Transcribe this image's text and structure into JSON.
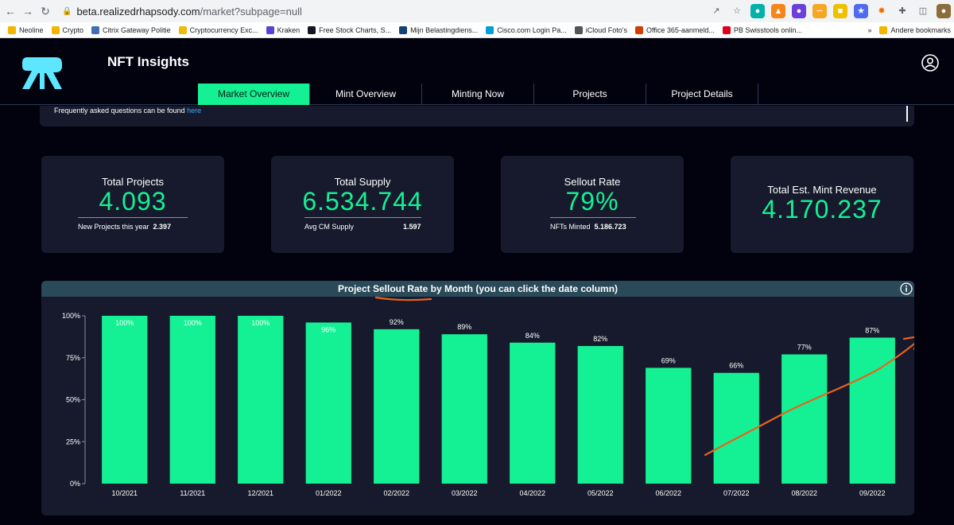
{
  "browser": {
    "url_host": "beta.realizedrhapsody.com",
    "url_path": "/market?subpage=null",
    "bookmarks": [
      {
        "label": "Neoline",
        "color": "#f5b400"
      },
      {
        "label": "Crypto",
        "color": "#f5b400"
      },
      {
        "label": "Citrix Gateway Politie",
        "color": "#3f6fb6"
      },
      {
        "label": "Cryptocurrency Exc...",
        "color": "#f0b90b"
      },
      {
        "label": "Kraken",
        "color": "#5741d9"
      },
      {
        "label": "Free Stock Charts, S...",
        "color": "#131722"
      },
      {
        "label": "Mijn Belastingdiens...",
        "color": "#154273"
      },
      {
        "label": "Cisco.com Login Pa...",
        "color": "#049fd9"
      },
      {
        "label": "iCloud Foto's",
        "color": "#555555"
      },
      {
        "label": "Office 365-aanmeld...",
        "color": "#d83b01"
      },
      {
        "label": "PB Swisstools onlin...",
        "color": "#e2001a"
      }
    ],
    "other_bookmarks": "Andere bookmarks",
    "more_bookmarks": "»"
  },
  "app": {
    "title": "NFT Insights",
    "tabs": [
      "Market Overview",
      "Mint Overview",
      "Minting Now",
      "Projects",
      "Project Details"
    ],
    "active_tab": 0,
    "faq_text": "Frequently asked questions can be found ",
    "faq_link": "here"
  },
  "cards": [
    {
      "title": "Total Projects",
      "value": "4.093",
      "foot_label": "New Projects this year",
      "foot_value": "2.397"
    },
    {
      "title": "Total Supply",
      "value": "6.534.744",
      "foot_label": "Avg CM Supply",
      "foot_value": "1.597"
    },
    {
      "title": "Sellout Rate",
      "value": "79%",
      "foot_label": "NFTs Minted",
      "foot_value": "5.186.723"
    },
    {
      "title": "Total Est. Mint Revenue",
      "value": "4.170.237"
    }
  ],
  "chart_data": {
    "type": "bar",
    "title": "Project Sellout Rate by Month (you can click the date column)",
    "categories": [
      "10/2021",
      "11/2021",
      "12/2021",
      "01/2022",
      "02/2022",
      "03/2022",
      "04/2022",
      "05/2022",
      "06/2022",
      "07/2022",
      "08/2022",
      "09/2022"
    ],
    "values": [
      100,
      100,
      100,
      96,
      92,
      89,
      84,
      82,
      69,
      66,
      77,
      87
    ],
    "data_labels": [
      "100%",
      "100%",
      "100%",
      "96%",
      "92%",
      "89%",
      "84%",
      "82%",
      "69%",
      "66%",
      "77%",
      "87%"
    ],
    "yticks": [
      0,
      25,
      50,
      75,
      100
    ],
    "ytick_labels": [
      "0%",
      "25%",
      "50%",
      "75%",
      "100%"
    ],
    "ylim": [
      0,
      100
    ],
    "bar_color": "#14f194",
    "annotation_color": "#e8621e"
  },
  "colors": {
    "accent": "#14f194",
    "background": "#02020f",
    "card": "#161a2c",
    "chart_header": "#2a4a5a",
    "link": "#3aa7ff"
  }
}
